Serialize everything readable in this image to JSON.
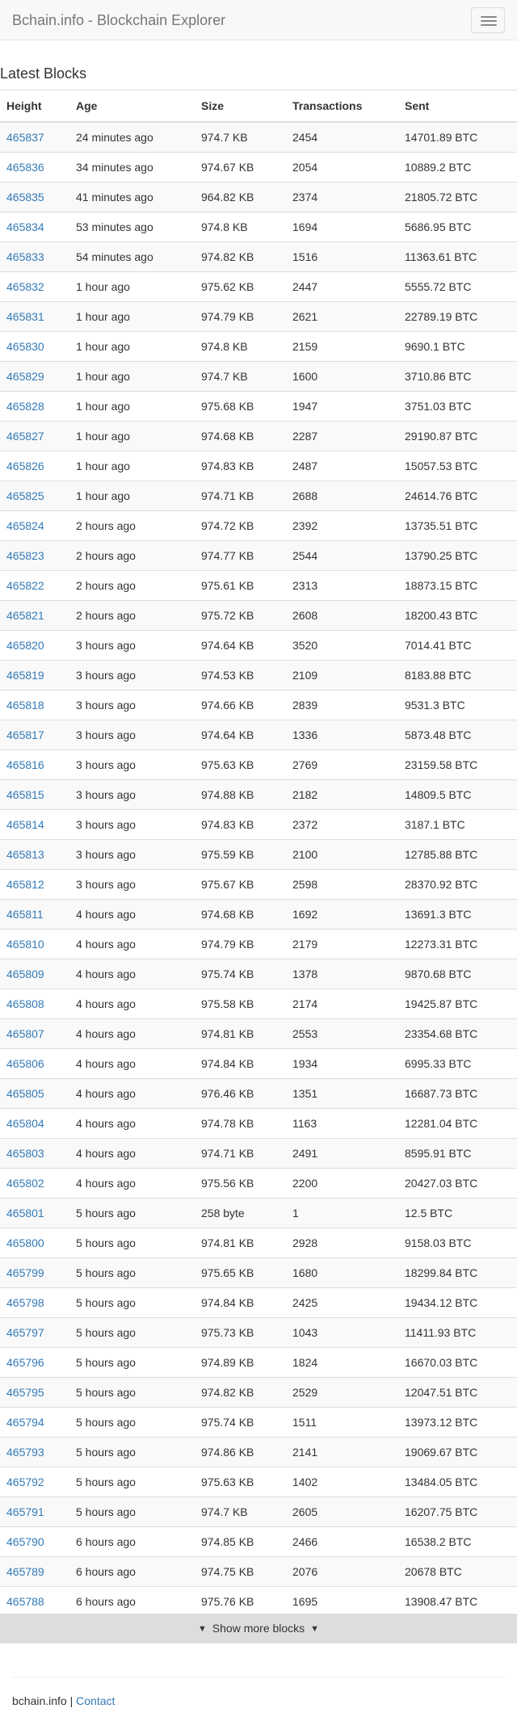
{
  "header": {
    "brand": "Bchain.info - Blockchain Explorer",
    "menu_icon": "hamburger-icon"
  },
  "main": {
    "title": "Latest Blocks",
    "columns": [
      "Height",
      "Age",
      "Size",
      "Transactions",
      "Sent"
    ],
    "rows": [
      [
        "465837",
        "24 minutes ago",
        "974.7 KB",
        "2454",
        "14701.89 BTC"
      ],
      [
        "465836",
        "34 minutes ago",
        "974.67 KB",
        "2054",
        "10889.2 BTC"
      ],
      [
        "465835",
        "41 minutes ago",
        "964.82 KB",
        "2374",
        "21805.72 BTC"
      ],
      [
        "465834",
        "53 minutes ago",
        "974.8 KB",
        "1694",
        "5686.95 BTC"
      ],
      [
        "465833",
        "54 minutes ago",
        "974.82 KB",
        "1516",
        "11363.61 BTC"
      ],
      [
        "465832",
        "1 hour ago",
        "975.62 KB",
        "2447",
        "5555.72 BTC"
      ],
      [
        "465831",
        "1 hour ago",
        "974.79 KB",
        "2621",
        "22789.19 BTC"
      ],
      [
        "465830",
        "1 hour ago",
        "974.8 KB",
        "2159",
        "9690.1 BTC"
      ],
      [
        "465829",
        "1 hour ago",
        "974.7 KB",
        "1600",
        "3710.86 BTC"
      ],
      [
        "465828",
        "1 hour ago",
        "975.68 KB",
        "1947",
        "3751.03 BTC"
      ],
      [
        "465827",
        "1 hour ago",
        "974.68 KB",
        "2287",
        "29190.87 BTC"
      ],
      [
        "465826",
        "1 hour ago",
        "974.83 KB",
        "2487",
        "15057.53 BTC"
      ],
      [
        "465825",
        "1 hour ago",
        "974.71 KB",
        "2688",
        "24614.76 BTC"
      ],
      [
        "465824",
        "2 hours ago",
        "974.72 KB",
        "2392",
        "13735.51 BTC"
      ],
      [
        "465823",
        "2 hours ago",
        "974.77 KB",
        "2544",
        "13790.25 BTC"
      ],
      [
        "465822",
        "2 hours ago",
        "975.61 KB",
        "2313",
        "18873.15 BTC"
      ],
      [
        "465821",
        "2 hours ago",
        "975.72 KB",
        "2608",
        "18200.43 BTC"
      ],
      [
        "465820",
        "3 hours ago",
        "974.64 KB",
        "3520",
        "7014.41 BTC"
      ],
      [
        "465819",
        "3 hours ago",
        "974.53 KB",
        "2109",
        "8183.88 BTC"
      ],
      [
        "465818",
        "3 hours ago",
        "974.66 KB",
        "2839",
        "9531.3 BTC"
      ],
      [
        "465817",
        "3 hours ago",
        "974.64 KB",
        "1336",
        "5873.48 BTC"
      ],
      [
        "465816",
        "3 hours ago",
        "975.63 KB",
        "2769",
        "23159.58 BTC"
      ],
      [
        "465815",
        "3 hours ago",
        "974.88 KB",
        "2182",
        "14809.5 BTC"
      ],
      [
        "465814",
        "3 hours ago",
        "974.83 KB",
        "2372",
        "3187.1 BTC"
      ],
      [
        "465813",
        "3 hours ago",
        "975.59 KB",
        "2100",
        "12785.88 BTC"
      ],
      [
        "465812",
        "3 hours ago",
        "975.67 KB",
        "2598",
        "28370.92 BTC"
      ],
      [
        "465811",
        "4 hours ago",
        "974.68 KB",
        "1692",
        "13691.3 BTC"
      ],
      [
        "465810",
        "4 hours ago",
        "974.79 KB",
        "2179",
        "12273.31 BTC"
      ],
      [
        "465809",
        "4 hours ago",
        "975.74 KB",
        "1378",
        "9870.68 BTC"
      ],
      [
        "465808",
        "4 hours ago",
        "975.58 KB",
        "2174",
        "19425.87 BTC"
      ],
      [
        "465807",
        "4 hours ago",
        "974.81 KB",
        "2553",
        "23354.68 BTC"
      ],
      [
        "465806",
        "4 hours ago",
        "974.84 KB",
        "1934",
        "6995.33 BTC"
      ],
      [
        "465805",
        "4 hours ago",
        "976.46 KB",
        "1351",
        "16687.73 BTC"
      ],
      [
        "465804",
        "4 hours ago",
        "974.78 KB",
        "1163",
        "12281.04 BTC"
      ],
      [
        "465803",
        "4 hours ago",
        "974.71 KB",
        "2491",
        "8595.91 BTC"
      ],
      [
        "465802",
        "4 hours ago",
        "975.56 KB",
        "2200",
        "20427.03 BTC"
      ],
      [
        "465801",
        "5 hours ago",
        "258 byte",
        "1",
        "12.5 BTC"
      ],
      [
        "465800",
        "5 hours ago",
        "974.81 KB",
        "2928",
        "9158.03 BTC"
      ],
      [
        "465799",
        "5 hours ago",
        "975.65 KB",
        "1680",
        "18299.84 BTC"
      ],
      [
        "465798",
        "5 hours ago",
        "974.84 KB",
        "2425",
        "19434.12 BTC"
      ],
      [
        "465797",
        "5 hours ago",
        "975.73 KB",
        "1043",
        "11411.93 BTC"
      ],
      [
        "465796",
        "5 hours ago",
        "974.89 KB",
        "1824",
        "16670.03 BTC"
      ],
      [
        "465795",
        "5 hours ago",
        "974.82 KB",
        "2529",
        "12047.51 BTC"
      ],
      [
        "465794",
        "5 hours ago",
        "975.74 KB",
        "1511",
        "13973.12 BTC"
      ],
      [
        "465793",
        "5 hours ago",
        "974.86 KB",
        "2141",
        "19069.67 BTC"
      ],
      [
        "465792",
        "5 hours ago",
        "975.63 KB",
        "1402",
        "13484.05 BTC"
      ],
      [
        "465791",
        "5 hours ago",
        "974.7 KB",
        "2605",
        "16207.75 BTC"
      ],
      [
        "465790",
        "6 hours ago",
        "974.85 KB",
        "2466",
        "16538.2 BTC"
      ],
      [
        "465789",
        "6 hours ago",
        "974.75 KB",
        "2076",
        "20678 BTC"
      ],
      [
        "465788",
        "6 hours ago",
        "975.76 KB",
        "1695",
        "13908.47 BTC"
      ]
    ],
    "show_more_label": "Show more blocks",
    "show_more_icon": "chevron-down-icon"
  },
  "footer": {
    "site": "bchain.info",
    "separator": "|",
    "contact_label": "Contact"
  },
  "colors": {
    "link": "#337ab7",
    "navbar_bg": "#f8f8f8",
    "stripe": "#f9f9f9",
    "show_more_bg": "#dddddd"
  }
}
